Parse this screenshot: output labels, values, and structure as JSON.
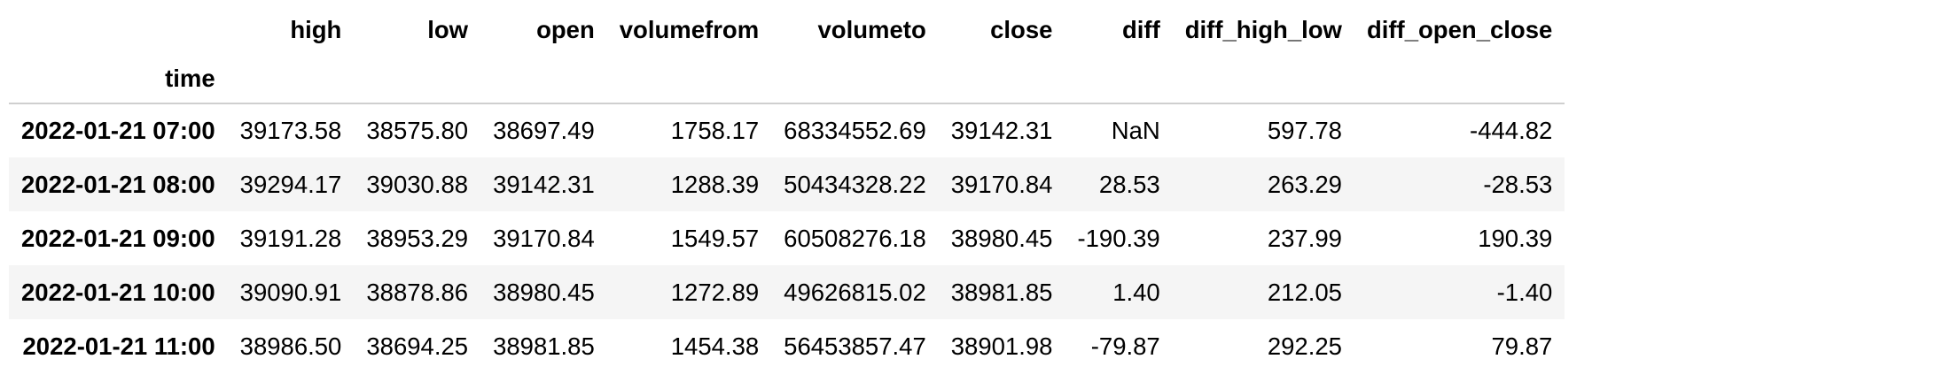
{
  "table": {
    "index_name": "time",
    "columns": [
      "high",
      "low",
      "open",
      "volumefrom",
      "volumeto",
      "close",
      "diff",
      "diff_high_low",
      "diff_open_close"
    ],
    "rows": [
      {
        "index": "2022-01-21 07:00",
        "values": [
          "39173.58",
          "38575.80",
          "38697.49",
          "1758.17",
          "68334552.69",
          "39142.31",
          "NaN",
          "597.78",
          "-444.82"
        ]
      },
      {
        "index": "2022-01-21 08:00",
        "values": [
          "39294.17",
          "39030.88",
          "39142.31",
          "1288.39",
          "50434328.22",
          "39170.84",
          "28.53",
          "263.29",
          "-28.53"
        ]
      },
      {
        "index": "2022-01-21 09:00",
        "values": [
          "39191.28",
          "38953.29",
          "39170.84",
          "1549.57",
          "60508276.18",
          "38980.45",
          "-190.39",
          "237.99",
          "190.39"
        ]
      },
      {
        "index": "2022-01-21 10:00",
        "values": [
          "39090.91",
          "38878.86",
          "38980.45",
          "1272.89",
          "49626815.02",
          "38981.85",
          "1.40",
          "212.05",
          "-1.40"
        ]
      },
      {
        "index": "2022-01-21 11:00",
        "values": [
          "38986.50",
          "38694.25",
          "38981.85",
          "1454.38",
          "56453857.47",
          "38901.98",
          "-79.87",
          "292.25",
          "79.87"
        ]
      }
    ]
  }
}
